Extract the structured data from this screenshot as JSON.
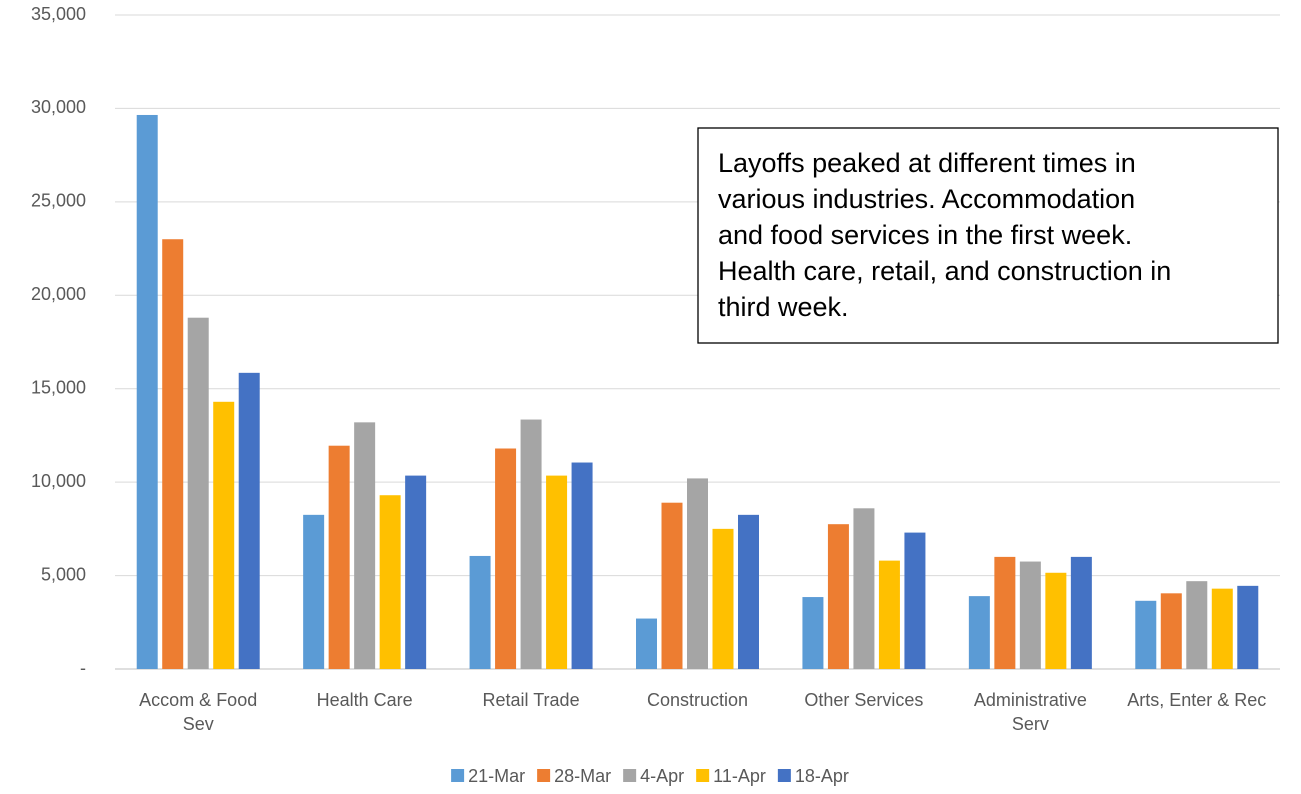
{
  "chart_data": {
    "type": "bar",
    "categories": [
      "Accom & Food Sev",
      "Health Care",
      "Retail Trade",
      "Construction",
      "Other Services",
      "Administrative Serv",
      "Arts, Enter & Rec"
    ],
    "series": [
      {
        "name": "21-Mar",
        "color": "#5b9bd5",
        "values": [
          29650,
          8250,
          6050,
          2700,
          3850,
          3900,
          3650
        ]
      },
      {
        "name": "28-Mar",
        "color": "#ed7d31",
        "values": [
          23000,
          11950,
          11800,
          8900,
          7750,
          6000,
          4050
        ]
      },
      {
        "name": "4-Apr",
        "color": "#a5a5a5",
        "values": [
          18800,
          13200,
          13350,
          10200,
          8600,
          5750,
          4700
        ]
      },
      {
        "name": "11-Apr",
        "color": "#ffc000",
        "values": [
          14300,
          9300,
          10350,
          7500,
          5800,
          5150,
          4300
        ]
      },
      {
        "name": "18-Apr",
        "color": "#4472c4",
        "values": [
          15850,
          10350,
          11050,
          8250,
          7300,
          6000,
          4450
        ]
      }
    ],
    "ylim": [
      0,
      35000
    ],
    "yticks": [
      {
        "value": 0,
        "label": "-"
      },
      {
        "value": 5000,
        "label": "5,000"
      },
      {
        "value": 10000,
        "label": "10,000"
      },
      {
        "value": 15000,
        "label": "15,000"
      },
      {
        "value": 20000,
        "label": "20,000"
      },
      {
        "value": 25000,
        "label": "25,000"
      },
      {
        "value": 30000,
        "label": "30,000"
      },
      {
        "value": 35000,
        "label": "35,000"
      }
    ],
    "grid": true,
    "legend": "bottom",
    "annotation": [
      "Layoffs peaked at different times in",
      "various industries. Accommodation",
      "and food services in the first week.",
      "Health care, retail, and construction in",
      "third week."
    ]
  }
}
